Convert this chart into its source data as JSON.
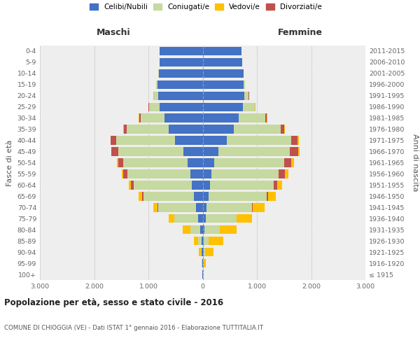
{
  "age_groups": [
    "100+",
    "95-99",
    "90-94",
    "85-89",
    "80-84",
    "75-79",
    "70-74",
    "65-69",
    "60-64",
    "55-59",
    "50-54",
    "45-49",
    "40-44",
    "35-39",
    "30-34",
    "25-29",
    "20-24",
    "15-19",
    "10-14",
    "5-9",
    "0-4"
  ],
  "birth_years": [
    "≤ 1915",
    "1916-1920",
    "1921-1925",
    "1926-1930",
    "1931-1935",
    "1936-1940",
    "1941-1945",
    "1946-1950",
    "1951-1955",
    "1956-1960",
    "1961-1965",
    "1966-1970",
    "1971-1975",
    "1976-1980",
    "1981-1985",
    "1986-1990",
    "1991-1995",
    "1996-2000",
    "2001-2005",
    "2006-2010",
    "2011-2015"
  ],
  "maschi_celibe": [
    5,
    10,
    15,
    25,
    45,
    90,
    120,
    160,
    195,
    230,
    280,
    360,
    510,
    630,
    700,
    790,
    820,
    830,
    810,
    800,
    800
  ],
  "maschi_coniugato": [
    0,
    5,
    20,
    55,
    175,
    430,
    700,
    930,
    1070,
    1160,
    1180,
    1200,
    1090,
    770,
    445,
    195,
    75,
    25,
    5,
    0,
    0
  ],
  "maschi_vedovo": [
    0,
    5,
    30,
    75,
    145,
    110,
    75,
    55,
    35,
    25,
    15,
    10,
    8,
    5,
    5,
    5,
    5,
    0,
    0,
    0,
    0
  ],
  "maschi_divorziato": [
    0,
    0,
    0,
    0,
    0,
    0,
    10,
    30,
    55,
    80,
    100,
    120,
    95,
    55,
    25,
    10,
    5,
    0,
    0,
    0,
    0
  ],
  "femmine_celibe": [
    5,
    10,
    15,
    20,
    30,
    55,
    75,
    105,
    130,
    155,
    210,
    290,
    450,
    580,
    660,
    740,
    765,
    760,
    750,
    730,
    720
  ],
  "femmine_coniugato": [
    0,
    5,
    25,
    90,
    285,
    570,
    840,
    1070,
    1180,
    1250,
    1290,
    1320,
    1180,
    860,
    495,
    215,
    85,
    22,
    8,
    0,
    0
  ],
  "femmine_vedovo": [
    5,
    40,
    155,
    275,
    315,
    275,
    215,
    145,
    85,
    65,
    45,
    28,
    18,
    8,
    5,
    5,
    5,
    0,
    0,
    0,
    0
  ],
  "femmine_divorziato": [
    0,
    0,
    0,
    0,
    0,
    5,
    10,
    30,
    70,
    110,
    135,
    150,
    120,
    68,
    28,
    8,
    5,
    5,
    0,
    0,
    0
  ],
  "colors": {
    "celibe": "#4472C4",
    "coniugato": "#C6D9A0",
    "vedovo": "#FFC000",
    "divorziato": "#C0504D"
  },
  "legend_labels": [
    "Celibi/Nubili",
    "Coniugati/e",
    "Vedovi/e",
    "Divorziati/e"
  ],
  "title": "Popolazione per età, sesso e stato civile - 2016",
  "subtitle": "COMUNE DI CHIOGGIA (VE) - Dati ISTAT 1° gennaio 2016 - Elaborazione TUTTITALIA.IT",
  "ylabel_left": "Fasce di età",
  "ylabel_right": "Anni di nascita",
  "xlabel_left": "Maschi",
  "xlabel_right": "Femmine",
  "xlim": 3000,
  "bg_color": "#FFFFFF",
  "plot_bg": "#EEEEEE"
}
